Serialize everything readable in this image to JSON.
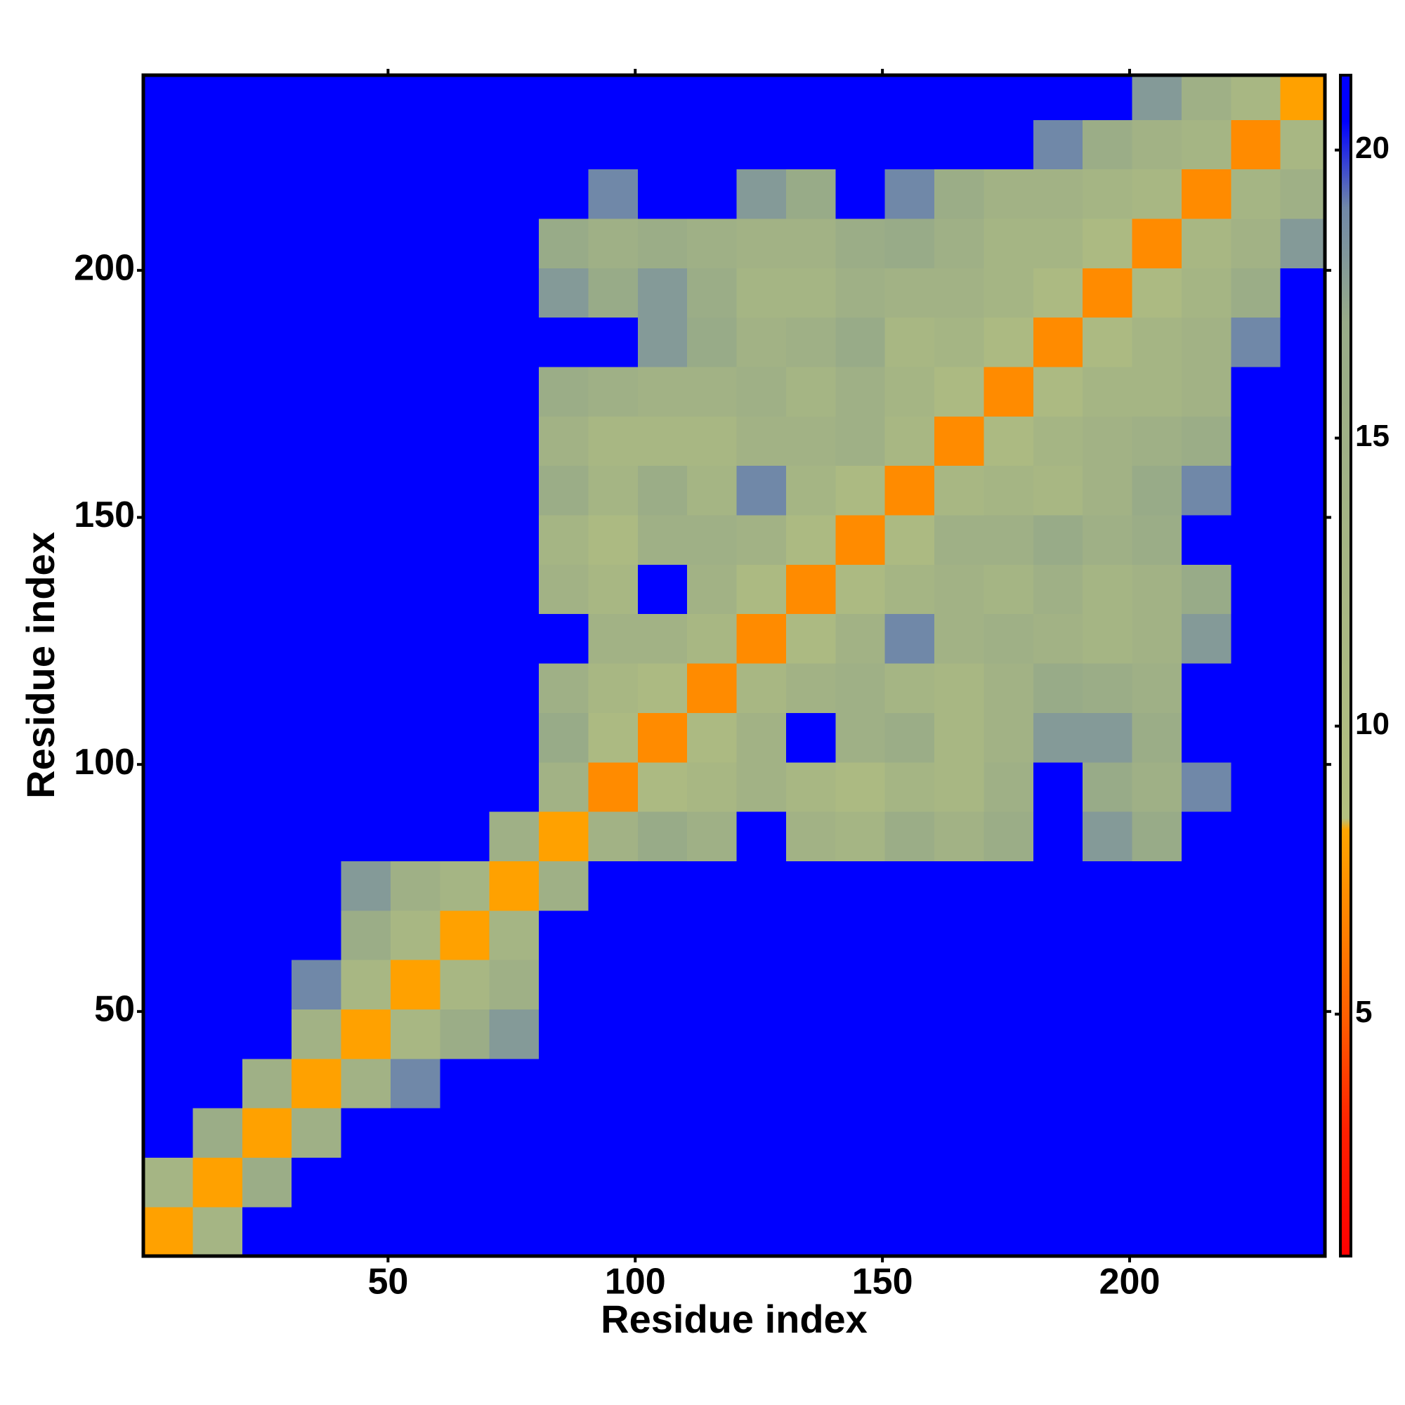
{
  "chart_data": {
    "type": "heatmap",
    "xlabel": "Residue index",
    "ylabel": "Residue index",
    "x_bins": [
      0.5,
      10.5,
      20.5,
      30.5,
      40.5,
      50.5,
      60.5,
      70.5,
      80.5,
      90.5,
      100.5,
      110.5,
      120.5,
      130.5,
      140.5,
      150.5,
      160.5,
      170.5,
      180.5,
      190.5,
      200.5,
      210.5,
      220.5,
      230.5,
      239.5
    ],
    "y_bins": [
      0.5,
      10.5,
      20.5,
      30.5,
      40.5,
      50.5,
      60.5,
      70.5,
      80.5,
      90.5,
      100.5,
      110.5,
      120.5,
      130.5,
      140.5,
      150.5,
      160.5,
      170.5,
      180.5,
      190.5,
      200.5,
      210.5,
      220.5,
      230.5,
      239.5
    ],
    "xlim": [
      0.5,
      239.5
    ],
    "ylim": [
      0.5,
      239.5
    ],
    "xticks": [
      50,
      100,
      150,
      200
    ],
    "yticks": [
      50,
      100,
      150,
      200
    ],
    "zlim": [
      0.8,
      21.3
    ],
    "zticks": [
      5,
      10,
      15,
      20
    ],
    "colorscale": [
      [
        0.8,
        "#ff0000"
      ],
      [
        3,
        "#ff2000"
      ],
      [
        5,
        "#ff6000"
      ],
      [
        8.2,
        "#ffa500"
      ],
      [
        8.4,
        "#b4c080"
      ],
      [
        17,
        "#98ab88"
      ],
      [
        19,
        "#7088a8"
      ],
      [
        20.5,
        "#0000ff"
      ],
      [
        21.3,
        "#0000ff"
      ]
    ],
    "z": [
      [
        8,
        13,
        21,
        21,
        21,
        21,
        21,
        21,
        21,
        21,
        21,
        21,
        21,
        21,
        21,
        21,
        21,
        21,
        21,
        21,
        21,
        21,
        21,
        21
      ],
      [
        13,
        8,
        16,
        21,
        21,
        21,
        21,
        21,
        21,
        21,
        21,
        21,
        21,
        21,
        21,
        21,
        21,
        21,
        21,
        21,
        21,
        21,
        21,
        21
      ],
      [
        21,
        16,
        8,
        15,
        21,
        21,
        21,
        21,
        21,
        21,
        21,
        21,
        21,
        21,
        21,
        21,
        21,
        21,
        21,
        21,
        21,
        21,
        21,
        21
      ],
      [
        21,
        21,
        15,
        8,
        14,
        19,
        21,
        21,
        21,
        21,
        21,
        21,
        21,
        21,
        21,
        21,
        21,
        21,
        21,
        21,
        21,
        21,
        21,
        21
      ],
      [
        21,
        21,
        21,
        14,
        8,
        12,
        16,
        18,
        21,
        21,
        21,
        21,
        21,
        21,
        21,
        21,
        21,
        21,
        21,
        21,
        21,
        21,
        21,
        21
      ],
      [
        21,
        21,
        21,
        19,
        12,
        8,
        12,
        15,
        21,
        21,
        21,
        21,
        21,
        21,
        21,
        21,
        21,
        21,
        21,
        21,
        21,
        21,
        21,
        21
      ],
      [
        21,
        21,
        21,
        21,
        16,
        12,
        8,
        13,
        21,
        21,
        21,
        21,
        21,
        21,
        21,
        21,
        21,
        21,
        21,
        21,
        21,
        21,
        21,
        21
      ],
      [
        21,
        21,
        21,
        21,
        18,
        15,
        13,
        8,
        15,
        21,
        21,
        21,
        21,
        21,
        21,
        21,
        21,
        21,
        21,
        21,
        21,
        21,
        21,
        21
      ],
      [
        21,
        21,
        21,
        21,
        21,
        21,
        21,
        15,
        8,
        14,
        17,
        15,
        21,
        14,
        13,
        16,
        14,
        16,
        21,
        18,
        17,
        21,
        21,
        21
      ],
      [
        21,
        21,
        21,
        21,
        21,
        21,
        21,
        21,
        14,
        7,
        11,
        12,
        14,
        12,
        11,
        13,
        12,
        15,
        21,
        17,
        15,
        19,
        21,
        21
      ],
      [
        21,
        21,
        21,
        21,
        21,
        21,
        21,
        21,
        17,
        11,
        7,
        11,
        14,
        21,
        15,
        16,
        12,
        14,
        18,
        18,
        16,
        21,
        21,
        21
      ],
      [
        21,
        21,
        21,
        21,
        21,
        21,
        21,
        21,
        15,
        12,
        11,
        7,
        12,
        14,
        15,
        13,
        12,
        14,
        17,
        16,
        15,
        21,
        21,
        21
      ],
      [
        21,
        21,
        21,
        21,
        21,
        21,
        21,
        21,
        21,
        14,
        14,
        12,
        7,
        11,
        14,
        19,
        14,
        15,
        14,
        13,
        14,
        18,
        21,
        21
      ],
      [
        21,
        21,
        21,
        21,
        21,
        21,
        21,
        21,
        14,
        12,
        21,
        14,
        11,
        7,
        11,
        13,
        14,
        13,
        15,
        13,
        14,
        17,
        21,
        21
      ],
      [
        21,
        21,
        21,
        21,
        21,
        21,
        21,
        21,
        13,
        11,
        15,
        15,
        14,
        11,
        7,
        11,
        15,
        15,
        17,
        15,
        16,
        21,
        21,
        21
      ],
      [
        21,
        21,
        21,
        21,
        21,
        21,
        21,
        21,
        16,
        13,
        16,
        13,
        19,
        13,
        11,
        7,
        12,
        13,
        12,
        14,
        17,
        19,
        21,
        21
      ],
      [
        21,
        21,
        21,
        21,
        21,
        21,
        21,
        21,
        14,
        12,
        12,
        12,
        14,
        14,
        15,
        12,
        7,
        11,
        13,
        14,
        15,
        16,
        21,
        21
      ],
      [
        21,
        21,
        21,
        21,
        21,
        21,
        21,
        21,
        16,
        15,
        14,
        14,
        15,
        13,
        15,
        13,
        11,
        7,
        11,
        13,
        13,
        14,
        21,
        21
      ],
      [
        21,
        21,
        21,
        21,
        21,
        21,
        21,
        21,
        21,
        21,
        18,
        17,
        14,
        15,
        17,
        12,
        13,
        11,
        7,
        11,
        13,
        14,
        19,
        21
      ],
      [
        21,
        21,
        21,
        21,
        21,
        21,
        21,
        21,
        18,
        17,
        18,
        16,
        13,
        13,
        15,
        14,
        14,
        13,
        11,
        7,
        11,
        13,
        16,
        21
      ],
      [
        21,
        21,
        21,
        21,
        21,
        21,
        21,
        21,
        17,
        15,
        16,
        15,
        14,
        14,
        16,
        17,
        15,
        13,
        13,
        11,
        7,
        12,
        14,
        18
      ],
      [
        21,
        21,
        21,
        21,
        21,
        21,
        21,
        21,
        21,
        19,
        21,
        21,
        18,
        17,
        21,
        19,
        16,
        14,
        14,
        13,
        12,
        7,
        13,
        15
      ],
      [
        21,
        21,
        21,
        21,
        21,
        21,
        21,
        21,
        21,
        21,
        21,
        21,
        21,
        21,
        21,
        21,
        21,
        21,
        19,
        16,
        14,
        13,
        7,
        12
      ],
      [
        21,
        21,
        21,
        21,
        21,
        21,
        21,
        21,
        21,
        21,
        21,
        21,
        21,
        21,
        21,
        21,
        21,
        21,
        21,
        21,
        18,
        15,
        12,
        8
      ]
    ]
  }
}
